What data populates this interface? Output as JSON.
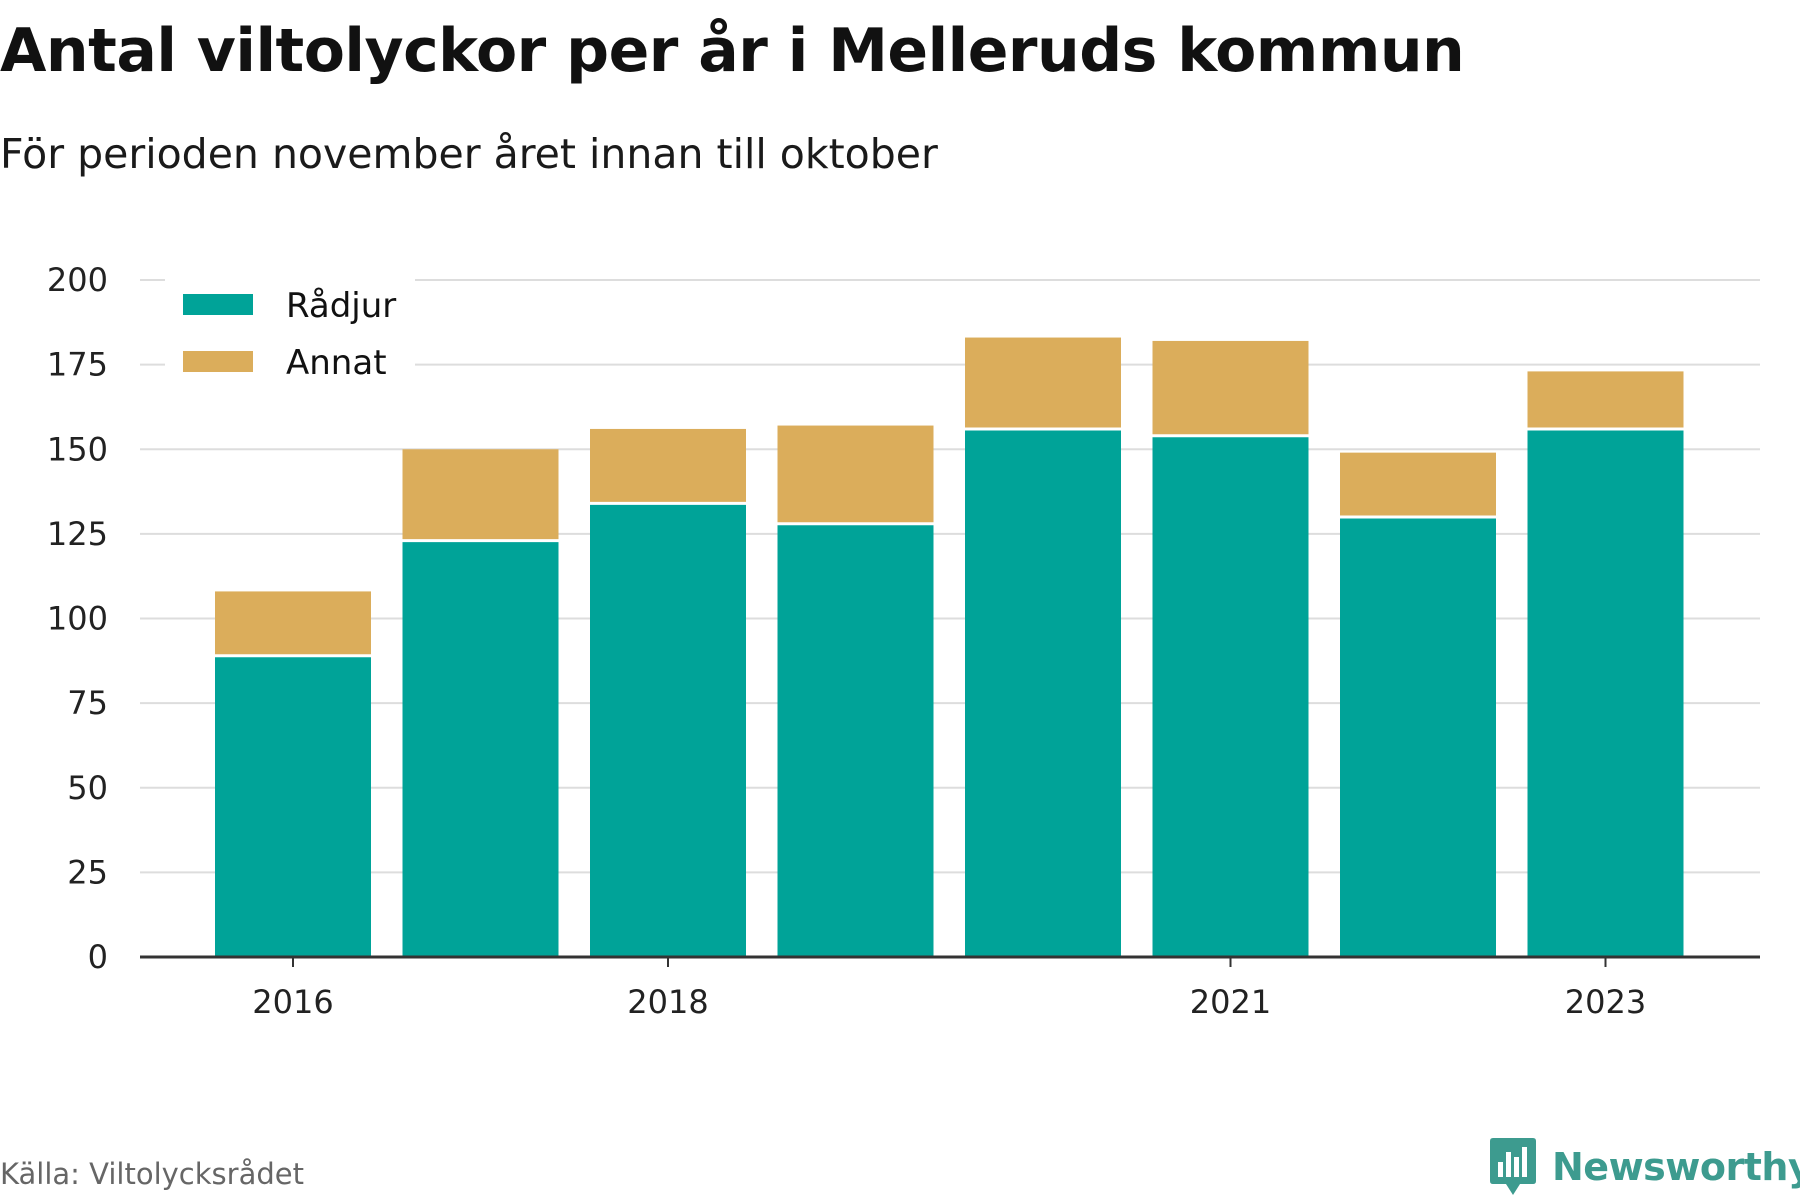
{
  "chart_data": {
    "type": "bar",
    "stacked": true,
    "title": "Antal viltolyckor per år i Melleruds kommun",
    "subtitle": "För perioden november året innan till oktober",
    "categories": [
      "2016",
      "2017",
      "2018",
      "2019",
      "2020",
      "2021",
      "2022",
      "2023"
    ],
    "x_tick_labels": [
      "2016",
      "2018",
      "2021",
      "2023"
    ],
    "series": [
      {
        "name": "Rådjur",
        "color": "#00a398",
        "values": [
          89,
          123,
          134,
          128,
          156,
          154,
          130,
          156
        ]
      },
      {
        "name": "Annat",
        "color": "#dbad5b",
        "values": [
          19,
          27,
          22,
          29,
          27,
          28,
          19,
          17
        ]
      }
    ],
    "ylim": [
      0,
      200
    ],
    "yticks": [
      0,
      25,
      50,
      75,
      100,
      125,
      150,
      175,
      200
    ],
    "grid": true,
    "legend_position": "top-left",
    "xlabel": "",
    "ylabel": ""
  },
  "source": "Källa: Viltolycksrådet",
  "brand": {
    "name": "Newsworthy",
    "color": "#3d9b8f",
    "icon": "newsworthy-logo-icon"
  }
}
